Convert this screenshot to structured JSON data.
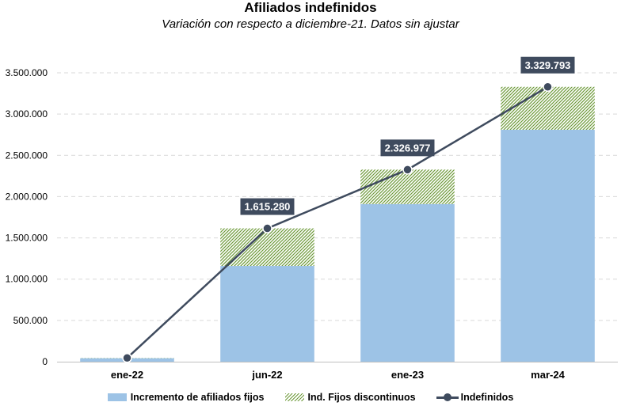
{
  "chart_data": {
    "type": "bar",
    "stacked": true,
    "title": "Afiliados indefinidos",
    "subtitle": "Variación con respecto a diciembre-21. Datos sin ajustar",
    "categories": [
      "ene-22",
      "jun-22",
      "ene-23",
      "mar-24"
    ],
    "series": [
      {
        "name": "Incremento de afiliados fijos",
        "kind": "bar",
        "color": "#9dc3e6",
        "values": [
          42000,
          1160000,
          1910000,
          2810000
        ]
      },
      {
        "name": "Ind. Fijos discontinuos",
        "kind": "bar-hatched",
        "color": "#6e9a3a",
        "values": [
          3000,
          455280,
          416977,
          519793
        ]
      },
      {
        "name": "Indefinidos",
        "kind": "line",
        "color": "#3f4b5e",
        "values": [
          45000,
          1615280,
          2326977,
          3329793
        ]
      }
    ],
    "data_labels": [
      "",
      "1.615.280",
      "2.326.977",
      "3.329.793"
    ],
    "y_ticks": [
      0,
      500000,
      1000000,
      1500000,
      2000000,
      2500000,
      3000000,
      3500000
    ],
    "y_tick_labels": [
      "0",
      "500.000",
      "1.000.000",
      "1.500.000",
      "2.000.000",
      "2.500.000",
      "3.000.000",
      "3.500.000"
    ],
    "ylim": [
      0,
      3500000
    ],
    "xlabel": "",
    "ylabel": "",
    "grid": true,
    "legend_position": "bottom"
  }
}
